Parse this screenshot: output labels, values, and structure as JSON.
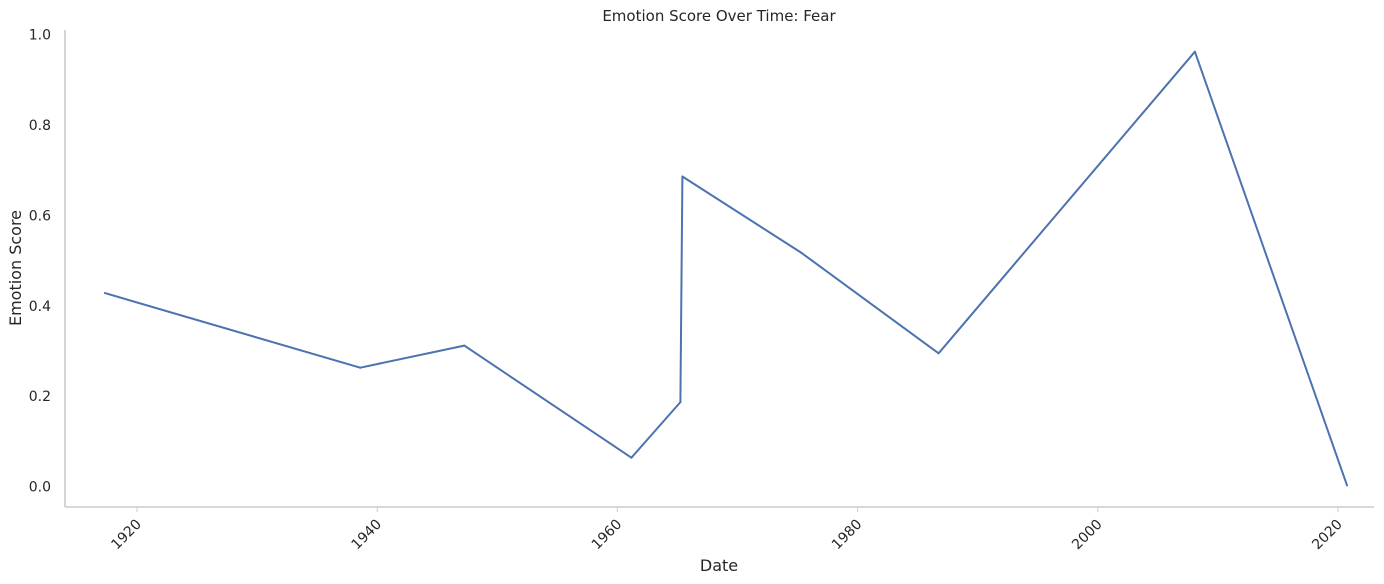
{
  "chart_data": {
    "type": "line",
    "title": "Emotion Score Over Time: Fear",
    "xlabel": "Date",
    "ylabel": "Emotion Score",
    "x_scale": "time",
    "xlim": [
      "1914-01-01",
      "2023-01-01"
    ],
    "ylim": [
      -0.045,
      1.01
    ],
    "xticks": [
      "1920",
      "1940",
      "1960",
      "1980",
      "2000",
      "2020"
    ],
    "yticks": [
      "0.0",
      "0.2",
      "0.4",
      "0.6",
      "0.8",
      "1.0"
    ],
    "grid": false,
    "legend": "none",
    "series": [
      {
        "color": "#4c72b0",
        "x": [
          "1917-05-01",
          "1938-08-01",
          "1947-04-01",
          "1961-03-01",
          "1965-04-01",
          "1965-06-01",
          "1975-05-01",
          "1986-10-01",
          "2008-02-01",
          "2020-10-01"
        ],
        "y": [
          0.428,
          0.263,
          0.312,
          0.064,
          0.187,
          0.686,
          0.517,
          0.295,
          0.962,
          0.003
        ]
      }
    ]
  }
}
